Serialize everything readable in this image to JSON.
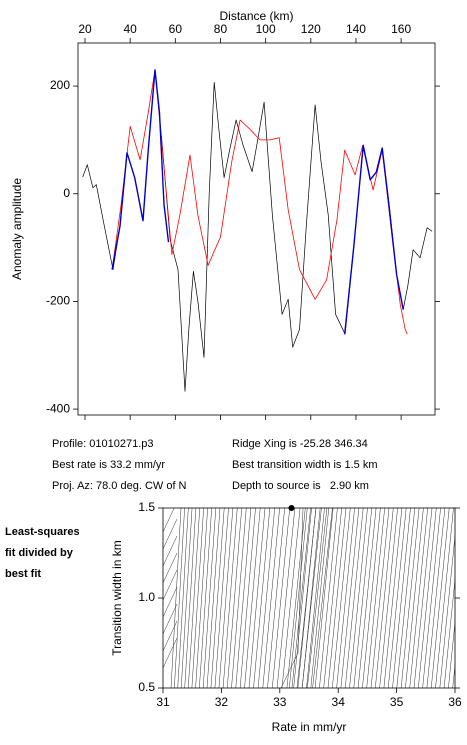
{
  "chart_data": [
    {
      "type": "line",
      "xlabel": "Distance (km)",
      "ylabel": "Anomaly amplitude",
      "xlim": [
        16.9,
        175
      ],
      "ylim": [
        -411,
        280
      ],
      "xticks": [
        20,
        40,
        60,
        80,
        100,
        120,
        140,
        160
      ],
      "yticks": [
        -400,
        -200,
        0,
        200
      ],
      "series": [
        {
          "color": "#000000",
          "x": [
            19,
            21,
            23.5,
            25,
            28.4,
            32.4,
            35.5,
            38.6,
            42,
            45.7,
            48,
            51,
            54,
            57.7,
            61.2,
            64.3,
            66,
            68,
            70,
            72.7,
            75,
            77.2,
            79.5,
            81.6,
            84,
            86.9,
            90,
            94,
            96.5,
            99.3,
            103,
            107.3,
            110,
            112,
            115,
            118,
            121.9,
            124.5,
            127.7,
            131,
            135.2,
            139,
            143.2,
            146.3,
            149,
            151.6,
            155,
            158,
            160.9,
            163,
            165.3,
            168.4,
            171.5,
            173.7
          ],
          "values": [
            31,
            54,
            11,
            17,
            -57,
            -141,
            -60,
            76,
            30,
            -50,
            80,
            230,
            100,
            -85,
            -141,
            -367,
            -250,
            -144,
            -200,
            -304,
            0,
            207,
            110,
            30,
            80,
            137,
            90,
            41,
            100,
            170,
            -40,
            -224,
            -196,
            -285,
            -252,
            -60,
            165,
            60,
            -39,
            -224,
            -261,
            -100,
            87,
            26,
            40,
            85,
            -30,
            -150,
            -215,
            -170,
            -104,
            -119,
            -63,
            -70
          ]
        },
        {
          "color": "#ff0000",
          "x": [
            32,
            36,
            40,
            44.4,
            48,
            51,
            55,
            58.5,
            62,
            66.5,
            70,
            74.5,
            80,
            85,
            88.7,
            93,
            97.5,
            102,
            106,
            110,
            115,
            121.9,
            127,
            131.6,
            135,
            139.6,
            143,
            147.6,
            151.6,
            156,
            159.6,
            161.8,
            162.7
          ],
          "values": [
            -141,
            -20,
            125,
            63,
            150,
            230,
            50,
            -113,
            -40,
            72,
            -40,
            -133,
            -80,
            60,
            137,
            120,
            100,
            100,
            104,
            -30,
            -141,
            -196,
            -160,
            -48,
            81,
            35,
            90,
            7,
            81,
            -80,
            -205,
            -252,
            -261
          ]
        },
        {
          "color": "#0000cc",
          "x": [
            32,
            35.5,
            38.6,
            42,
            45.7,
            48,
            51,
            53,
            55,
            57,
            60,
            135,
            139,
            143.2,
            146.3,
            149,
            151.6,
            154,
            158,
            160.9
          ],
          "values": [
            -141,
            -60,
            76,
            30,
            -50,
            80,
            230,
            150,
            -20,
            -90,
            null,
            -261,
            -100,
            90,
            26,
            40,
            85,
            0,
            -150,
            -215
          ]
        }
      ]
    },
    {
      "type": "contour",
      "xlabel": "Rate in mm/yr",
      "ylabel": "Transition width in km",
      "xlim": [
        31,
        36
      ],
      "ylim": [
        0.5,
        1.5
      ],
      "xticks": [
        31,
        32,
        33,
        34,
        35,
        36
      ],
      "yticks": [
        0.5,
        {
          "value": 1,
          "label": "1.0"
        },
        1.5
      ],
      "points": {
        "x": [
          33.2
        ],
        "values": [
          1.5
        ]
      }
    }
  ],
  "info": {
    "profile": "Profile: 01010271.p3",
    "ridge": "Ridge Xing is -25.28 346.34",
    "rate": "Best rate is 33.2 mm/yr",
    "width": "Best transition width is 1.5 km",
    "azimuth": "Proj. Az: 78.0 deg. CW of N",
    "depth": "Depth to source is   2.90 km"
  },
  "side_note": [
    "Least-squares",
    "fit divided by",
    "best fit"
  ]
}
